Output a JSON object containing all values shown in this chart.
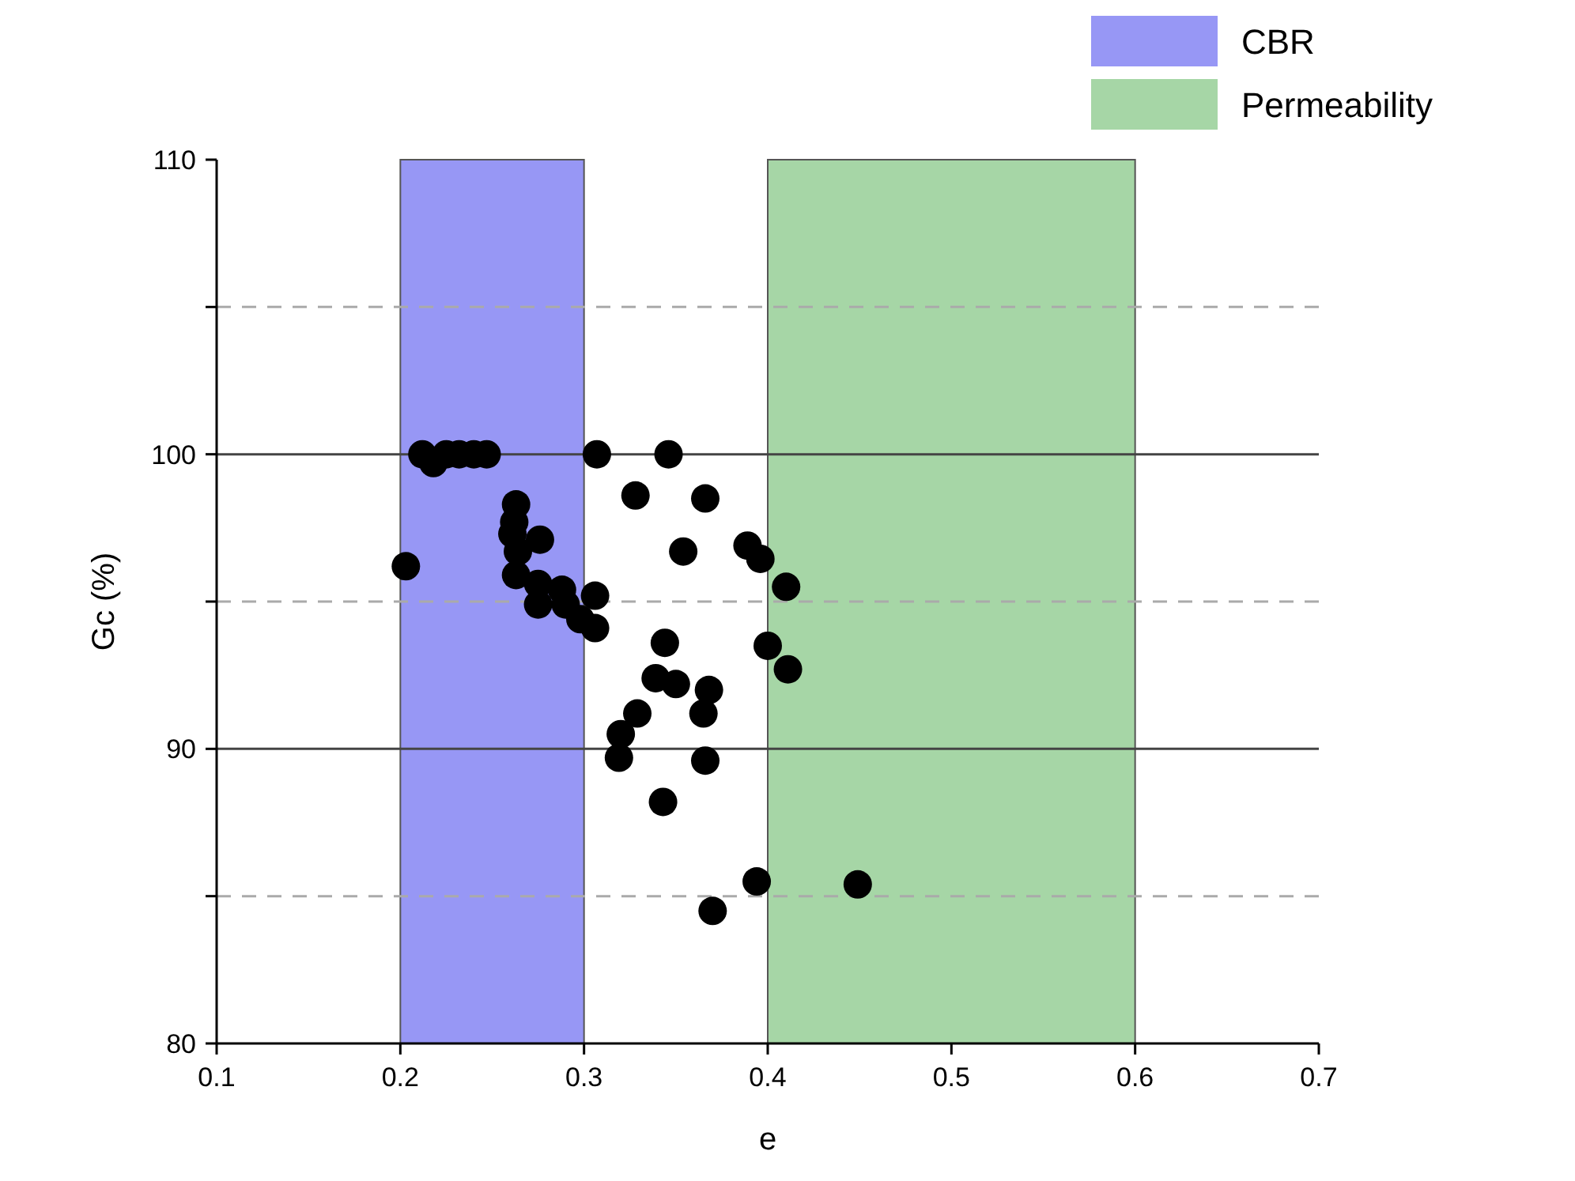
{
  "chart_data": {
    "type": "scatter",
    "xlabel": "e",
    "ylabel": "Gc (%)",
    "xlim": [
      0.1,
      0.7
    ],
    "xticks": [
      0.1,
      0.2,
      0.3,
      0.4,
      0.5,
      0.6,
      0.7
    ],
    "ylim": [
      80,
      110
    ],
    "yticks": [
      80,
      {
        "value": 85,
        "label": null
      },
      90,
      {
        "value": 95,
        "label": null
      },
      100,
      {
        "value": 105,
        "label": null
      },
      110
    ],
    "grid": "y",
    "marker": "circle",
    "legend": "top right",
    "bands": [
      {
        "axis": "x",
        "from": 0.2,
        "to": 0.3,
        "label": "CBR",
        "color": "#9797f5"
      },
      {
        "axis": "x",
        "from": 0.4,
        "to": 0.6,
        "label": "Permeability",
        "color": "#a6d6a6"
      }
    ],
    "series": [
      {
        "color": "#000000",
        "x": [
          0.203,
          0.212,
          0.218,
          0.225,
          0.232,
          0.24,
          0.247,
          0.263,
          0.262,
          0.261,
          0.276,
          0.264,
          0.263,
          0.275,
          0.275,
          0.288,
          0.29,
          0.298,
          0.307,
          0.306,
          0.306,
          0.328,
          0.346,
          0.366,
          0.354,
          0.389,
          0.396,
          0.41,
          0.344,
          0.4,
          0.411,
          0.339,
          0.35,
          0.368,
          0.365,
          0.329,
          0.32,
          0.319,
          0.366,
          0.343,
          0.394,
          0.449,
          0.37
        ],
        "values": [
          96.2,
          100,
          99.7,
          100,
          100,
          100,
          100,
          98.3,
          97.7,
          97.3,
          97.1,
          96.7,
          95.9,
          95.6,
          94.9,
          95.4,
          94.9,
          94.4,
          100,
          95.2,
          94.1,
          98.6,
          100,
          98.5,
          96.7,
          96.9,
          96.45,
          95.5,
          93.6,
          93.5,
          92.7,
          92.4,
          92.2,
          92,
          91.2,
          91.2,
          90.5,
          89.7,
          89.6,
          88.2,
          85.5,
          85.4,
          84.5
        ]
      }
    ]
  }
}
